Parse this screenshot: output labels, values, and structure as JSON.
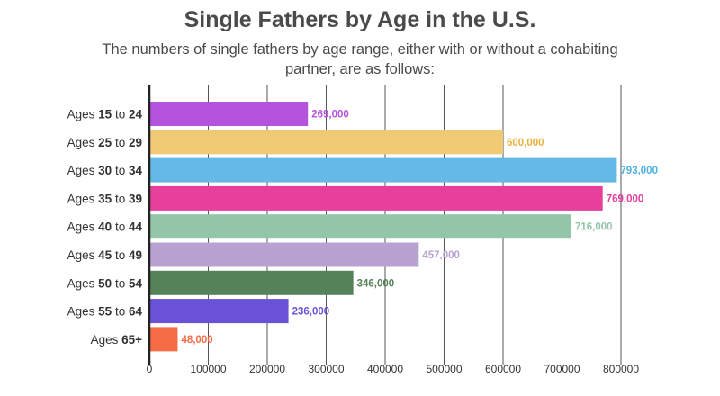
{
  "title": "Single Fathers by Age in the U.S.",
  "subtitle": "The numbers of single fathers by age range, either with or without a cohabiting partner, are as follows:",
  "chart_data": {
    "type": "bar",
    "orientation": "horizontal",
    "title": "Single Fathers by Age in the U.S.",
    "subtitle": "The numbers of single fathers by age range, either with or without a cohabiting partner, are as follows:",
    "xlabel": "",
    "ylabel": "",
    "xlim": [
      0,
      800000
    ],
    "grid": true,
    "categories": [
      {
        "prefix": "Ages ",
        "start": "15",
        "mid": " to ",
        "end": "24"
      },
      {
        "prefix": "Ages ",
        "start": "25",
        "mid": " to ",
        "end": "29"
      },
      {
        "prefix": "Ages ",
        "start": "30",
        "mid": " to ",
        "end": "34"
      },
      {
        "prefix": "Ages ",
        "start": "35",
        "mid": " to ",
        "end": "39"
      },
      {
        "prefix": "Ages ",
        "start": "40",
        "mid": " to ",
        "end": "44"
      },
      {
        "prefix": "Ages ",
        "start": "45",
        "mid": " to ",
        "end": "49"
      },
      {
        "prefix": "Ages ",
        "start": "50",
        "mid": " to ",
        "end": "54"
      },
      {
        "prefix": "Ages ",
        "start": "55",
        "mid": " to ",
        "end": "64"
      },
      {
        "prefix": "Ages ",
        "start": "65+",
        "mid": "",
        "end": ""
      }
    ],
    "values": [
      269000,
      600000,
      793000,
      769000,
      716000,
      457000,
      346000,
      236000,
      48000
    ],
    "value_labels": [
      "269,000",
      "600,000",
      "793,000",
      "769,000",
      "716,000",
      "457,000",
      "346,000",
      "236,000",
      "48,000"
    ],
    "colors": [
      "#b553dc",
      "#f0c974",
      "#65b9e6",
      "#e63f9c",
      "#93c5a8",
      "#b8a2d2",
      "#568259",
      "#6a52d8",
      "#f56b46"
    ],
    "label_colors": [
      "#b553dc",
      "#e8b13c",
      "#4fb3e3",
      "#e63f9c",
      "#93c5a8",
      "#b8a2d2",
      "#568259",
      "#6a52d8",
      "#f56b46"
    ],
    "x_ticks": [
      0,
      100000,
      200000,
      300000,
      400000,
      500000,
      600000,
      700000,
      800000
    ],
    "x_tick_labels": [
      "0",
      "100000",
      "200000",
      "300000",
      "400000",
      "500000",
      "600000",
      "700000",
      "800000"
    ]
  }
}
